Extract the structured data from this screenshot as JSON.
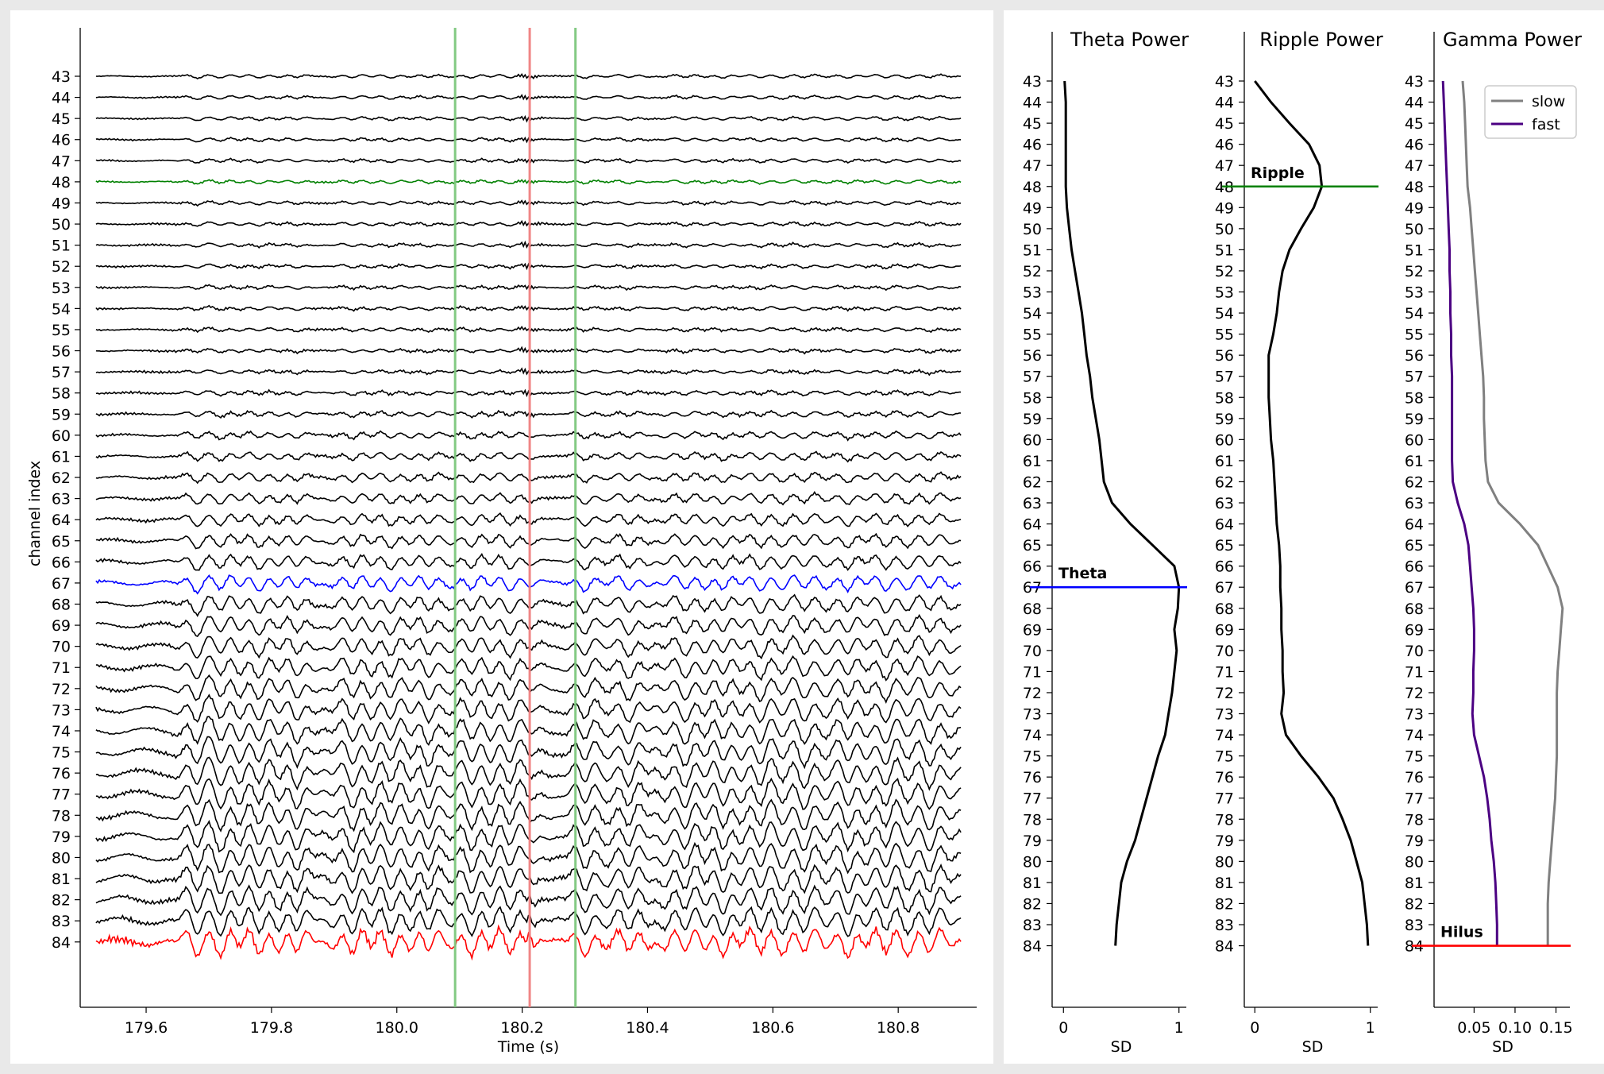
{
  "chart_data": [
    {
      "type": "line",
      "subtype": "multichannel-lfp-traces",
      "title": "",
      "xlabel": "Time (s)",
      "ylabel": "channel index",
      "xlim": [
        179.51,
        180.91
      ],
      "xticks": [
        179.6,
        179.8,
        180.0,
        180.2,
        180.4,
        180.6,
        180.8
      ],
      "xtick_labels": [
        "179.6",
        "179.8",
        "180.0",
        "180.2",
        "180.4",
        "180.6",
        "180.8"
      ],
      "channels": [
        43,
        44,
        45,
        46,
        47,
        48,
        49,
        50,
        51,
        52,
        53,
        54,
        55,
        56,
        57,
        58,
        59,
        60,
        61,
        62,
        63,
        64,
        65,
        66,
        67,
        68,
        69,
        70,
        71,
        72,
        73,
        74,
        75,
        76,
        77,
        78,
        79,
        80,
        81,
        82,
        83,
        84
      ],
      "channel_labels": [
        "43",
        "44",
        "45",
        "46",
        "47",
        "48",
        "49",
        "50",
        "51",
        "52",
        "53",
        "54",
        "55",
        "56",
        "57",
        "58",
        "59",
        "60",
        "61",
        "62",
        "63",
        "64",
        "65",
        "66",
        "67",
        "68",
        "69",
        "70",
        "71",
        "72",
        "73",
        "74",
        "75",
        "76",
        "77",
        "78",
        "79",
        "80",
        "81",
        "82",
        "83",
        "84"
      ],
      "highlighted_channels": [
        {
          "channel": 48,
          "color": "#008000"
        },
        {
          "channel": 67,
          "color": "#0000ff"
        },
        {
          "channel": 84,
          "color": "#ff0000"
        }
      ],
      "default_trace_color": "#000000",
      "vertical_markers": [
        {
          "x": 180.093,
          "color": "#7dc87d"
        },
        {
          "x": 180.212,
          "color": "#f08080"
        },
        {
          "x": 180.285,
          "color": "#7dc87d"
        }
      ]
    },
    {
      "type": "line",
      "orientation": "vertical-profile",
      "title": "Theta Power",
      "xlabel": "SD",
      "xlim": [
        -0.05,
        1.05
      ],
      "xticks": [
        0,
        1
      ],
      "xtick_labels": [
        "0",
        "1"
      ],
      "channels": [
        43,
        44,
        45,
        46,
        47,
        48,
        49,
        50,
        51,
        52,
        53,
        54,
        55,
        56,
        57,
        58,
        59,
        60,
        61,
        62,
        63,
        64,
        65,
        66,
        67,
        68,
        69,
        70,
        71,
        72,
        73,
        74,
        75,
        76,
        77,
        78,
        79,
        80,
        81,
        82,
        83,
        84
      ],
      "values": [
        0.01,
        0.02,
        0.02,
        0.02,
        0.02,
        0.02,
        0.03,
        0.05,
        0.07,
        0.1,
        0.13,
        0.16,
        0.18,
        0.2,
        0.23,
        0.25,
        0.28,
        0.31,
        0.33,
        0.35,
        0.42,
        0.58,
        0.77,
        0.96,
        1.0,
        0.99,
        0.96,
        0.98,
        0.96,
        0.94,
        0.91,
        0.88,
        0.82,
        0.77,
        0.72,
        0.67,
        0.62,
        0.55,
        0.5,
        0.48,
        0.46,
        0.45
      ],
      "marker": {
        "channel": 67,
        "label": "Theta",
        "color": "#0000ff"
      }
    },
    {
      "type": "line",
      "orientation": "vertical-profile",
      "title": "Ripple Power",
      "xlabel": "SD",
      "xlim": [
        -0.05,
        1.05
      ],
      "xticks": [
        0,
        1
      ],
      "xtick_labels": [
        "0",
        "1"
      ],
      "channels": [
        43,
        44,
        45,
        46,
        47,
        48,
        49,
        50,
        51,
        52,
        53,
        54,
        55,
        56,
        57,
        58,
        59,
        60,
        61,
        62,
        63,
        64,
        65,
        66,
        67,
        68,
        69,
        70,
        71,
        72,
        73,
        74,
        75,
        76,
        77,
        78,
        79,
        80,
        81,
        82,
        83,
        84
      ],
      "values": [
        0.0,
        0.14,
        0.3,
        0.47,
        0.56,
        0.58,
        0.51,
        0.4,
        0.3,
        0.24,
        0.21,
        0.19,
        0.16,
        0.12,
        0.12,
        0.12,
        0.13,
        0.14,
        0.16,
        0.17,
        0.18,
        0.19,
        0.21,
        0.22,
        0.22,
        0.23,
        0.23,
        0.24,
        0.24,
        0.25,
        0.23,
        0.27,
        0.4,
        0.55,
        0.68,
        0.76,
        0.83,
        0.88,
        0.93,
        0.95,
        0.97,
        0.98
      ],
      "marker": {
        "channel": 48,
        "label": "Ripple",
        "color": "#008000"
      }
    },
    {
      "type": "line",
      "orientation": "vertical-profile",
      "title": "Gamma Power",
      "xlabel": "SD",
      "xlim": [
        0.005,
        0.165
      ],
      "xticks": [
        0.05,
        0.1,
        0.15
      ],
      "xtick_labels": [
        "0.05",
        "0.10",
        "0.15"
      ],
      "channels": [
        43,
        44,
        45,
        46,
        47,
        48,
        49,
        50,
        51,
        52,
        53,
        54,
        55,
        56,
        57,
        58,
        59,
        60,
        61,
        62,
        63,
        64,
        65,
        66,
        67,
        68,
        69,
        70,
        71,
        72,
        73,
        74,
        75,
        76,
        77,
        78,
        79,
        80,
        81,
        82,
        83,
        84
      ],
      "series": [
        {
          "name": "slow",
          "color": "#808080",
          "values": [
            0.036,
            0.038,
            0.039,
            0.04,
            0.041,
            0.042,
            0.045,
            0.047,
            0.049,
            0.051,
            0.053,
            0.055,
            0.057,
            0.059,
            0.061,
            0.062,
            0.062,
            0.063,
            0.064,
            0.067,
            0.08,
            0.106,
            0.128,
            0.14,
            0.152,
            0.158,
            0.156,
            0.154,
            0.152,
            0.151,
            0.151,
            0.151,
            0.151,
            0.15,
            0.149,
            0.147,
            0.145,
            0.143,
            0.141,
            0.14,
            0.14,
            0.14
          ]
        },
        {
          "name": "fast",
          "color": "#4b0082",
          "values": [
            0.012,
            0.013,
            0.014,
            0.015,
            0.016,
            0.017,
            0.018,
            0.019,
            0.02,
            0.02,
            0.021,
            0.021,
            0.022,
            0.022,
            0.023,
            0.023,
            0.023,
            0.023,
            0.023,
            0.024,
            0.03,
            0.038,
            0.043,
            0.045,
            0.047,
            0.049,
            0.05,
            0.05,
            0.049,
            0.049,
            0.048,
            0.05,
            0.056,
            0.062,
            0.066,
            0.069,
            0.071,
            0.074,
            0.076,
            0.077,
            0.078,
            0.078
          ]
        }
      ],
      "marker": {
        "channel": 84,
        "label": "Hilus",
        "color": "#ff0000"
      },
      "legend": {
        "position": "top-right",
        "entries": [
          "slow",
          "fast"
        ]
      }
    }
  ]
}
